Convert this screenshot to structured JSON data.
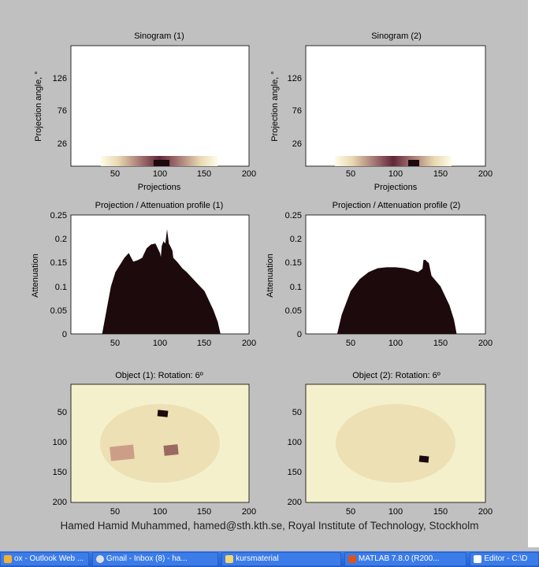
{
  "plots": {
    "sino1": {
      "title": "Sinogram (1)",
      "xlabel": "Projections",
      "ylabel": "Projection angle, °",
      "yticks": [
        "126",
        "76",
        "26"
      ]
    },
    "sino2": {
      "title": "Sinogram (2)",
      "xlabel": "Projections",
      "ylabel": "Projection angle, °",
      "yticks": [
        "126",
        "76",
        "26"
      ]
    },
    "prof1": {
      "title": "Projection / Attenuation profile (1)",
      "ylabel": "Attenuation",
      "yticks": [
        "0.25",
        "0.2",
        "0.15",
        "0.1",
        "0.05",
        "0"
      ]
    },
    "prof2": {
      "title": "Projection / Attenuation profile (2)",
      "ylabel": "Attenuation",
      "yticks": [
        "0.25",
        "0.2",
        "0.15",
        "0.1",
        "0.05",
        "0"
      ]
    },
    "obj1": {
      "title": "Object (1): Rotation: 6º",
      "yticks": [
        "50",
        "100",
        "150",
        "200"
      ]
    },
    "obj2": {
      "title": "Object (2): Rotation: 6º",
      "yticks": [
        "50",
        "100",
        "150",
        "200"
      ]
    },
    "xticks": [
      "50",
      "100",
      "150",
      "200"
    ]
  },
  "credit": "Hamed Hamid Muhammed, hamed@sth.kth.se, Royal Institute of Technology, Stockholm",
  "taskbar": [
    {
      "label": "ox - Outlook Web ...",
      "icon": "outlook-icon"
    },
    {
      "label": "Gmail - Inbox (8) - ha...",
      "icon": "browser-icon"
    },
    {
      "label": "kursmaterial",
      "icon": "folder-icon"
    },
    {
      "label": "MATLAB 7.8.0 (R200...",
      "icon": "matlab-icon"
    },
    {
      "label": "Editor - C:\\D",
      "icon": "editor-icon"
    }
  ],
  "colors": {
    "figure_bg": "#c0c0c0",
    "profile_fill": "#1c0a0c",
    "object_bg": "#f4f0cc",
    "ellipse": "#ece0b4",
    "taskbar": "#2a66d8"
  },
  "chart_data": [
    {
      "type": "heatmap",
      "title": "Sinogram (1)",
      "xlabel": "Projections",
      "ylabel": "Projection angle, °",
      "xlim": [
        0,
        200
      ],
      "x_ticks": [
        50,
        100,
        150,
        200
      ],
      "y_ticks": [
        26,
        76,
        126
      ]
    },
    {
      "type": "heatmap",
      "title": "Sinogram (2)",
      "xlabel": "Projections",
      "ylabel": "Projection angle, °",
      "xlim": [
        0,
        200
      ],
      "x_ticks": [
        50,
        100,
        150,
        200
      ],
      "y_ticks": [
        26,
        76,
        126
      ]
    },
    {
      "type": "area",
      "title": "Projection / Attenuation profile (1)",
      "ylabel": "Attenuation",
      "xlim": [
        0,
        200
      ],
      "ylim": [
        0,
        0.25
      ],
      "x": [
        35,
        40,
        45,
        50,
        55,
        60,
        65,
        70,
        75,
        80,
        85,
        90,
        95,
        100,
        101,
        102,
        104,
        106,
        108,
        110,
        112,
        114,
        115,
        120,
        125,
        130,
        140,
        150,
        160,
        165,
        168
      ],
      "values": [
        0,
        0.05,
        0.1,
        0.13,
        0.145,
        0.16,
        0.17,
        0.152,
        0.155,
        0.16,
        0.18,
        0.188,
        0.19,
        0.17,
        0.162,
        0.185,
        0.195,
        0.19,
        0.22,
        0.19,
        0.183,
        0.175,
        0.16,
        0.15,
        0.138,
        0.13,
        0.11,
        0.09,
        0.05,
        0.025,
        0
      ]
    },
    {
      "type": "area",
      "title": "Projection / Attenuation profile (2)",
      "ylabel": "Attenuation",
      "xlim": [
        0,
        200
      ],
      "ylim": [
        0,
        0.25
      ],
      "x": [
        35,
        40,
        50,
        60,
        70,
        80,
        90,
        100,
        110,
        120,
        125,
        130,
        131,
        133,
        135,
        137,
        140,
        150,
        160,
        165,
        168
      ],
      "values": [
        0,
        0.04,
        0.09,
        0.115,
        0.13,
        0.138,
        0.14,
        0.14,
        0.138,
        0.133,
        0.13,
        0.137,
        0.155,
        0.156,
        0.152,
        0.149,
        0.122,
        0.1,
        0.06,
        0.03,
        0
      ]
    },
    {
      "type": "heatmap",
      "title": "Object (1): Rotation: 6º",
      "xlim": [
        0,
        200
      ],
      "ylim": [
        0,
        200
      ],
      "x_ticks": [
        50,
        100,
        150,
        200
      ],
      "y_ticks": [
        50,
        100,
        150,
        200
      ]
    },
    {
      "type": "heatmap",
      "title": "Object (2): Rotation: 6º",
      "xlim": [
        0,
        200
      ],
      "ylim": [
        0,
        200
      ],
      "x_ticks": [
        50,
        100,
        150,
        200
      ],
      "y_ticks": [
        50,
        100,
        150,
        200
      ]
    }
  ]
}
